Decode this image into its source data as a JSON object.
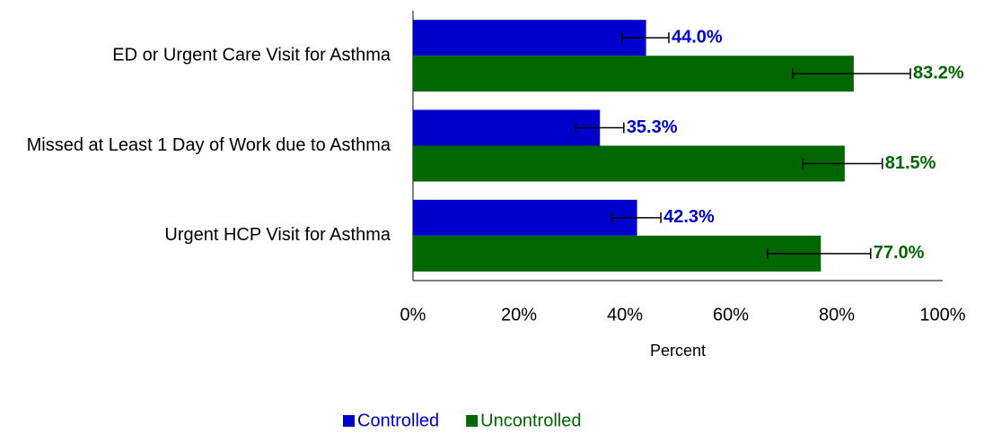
{
  "chart_data": {
    "type": "hbar-grouped",
    "categories": [
      "ED or Urgent Care Visit for Asthma",
      "Missed at Least 1 Day of Work due to Asthma",
      "Urgent HCP Visit for Asthma"
    ],
    "series": [
      {
        "name": "Controlled",
        "color": "#0000cc",
        "label_color": "#0000cc",
        "values": [
          44.0,
          35.3,
          42.3
        ],
        "value_labels": [
          "44.0%",
          "35.3%",
          "42.3%"
        ],
        "ci_low": [
          39.5,
          30.7,
          37.6
        ],
        "ci_high": [
          48.3,
          39.8,
          46.8
        ]
      },
      {
        "name": "Uncontrolled",
        "color": "#006600",
        "label_color": "#006600",
        "values": [
          83.2,
          81.5,
          77.0
        ],
        "value_labels": [
          "83.2%",
          "81.5%",
          "77.0%"
        ],
        "ci_low": [
          71.7,
          73.6,
          66.9
        ],
        "ci_high": [
          93.9,
          88.6,
          86.4
        ]
      }
    ],
    "xlabel": "Percent",
    "xlim": [
      0,
      100
    ],
    "xticks": [
      {
        "value": 0,
        "label": "0%"
      },
      {
        "value": 20,
        "label": "20%"
      },
      {
        "value": 40,
        "label": "40%"
      },
      {
        "value": 60,
        "label": "60%"
      },
      {
        "value": 80,
        "label": "80%"
      },
      {
        "value": 100,
        "label": "100%"
      }
    ],
    "legend": "bottom"
  }
}
